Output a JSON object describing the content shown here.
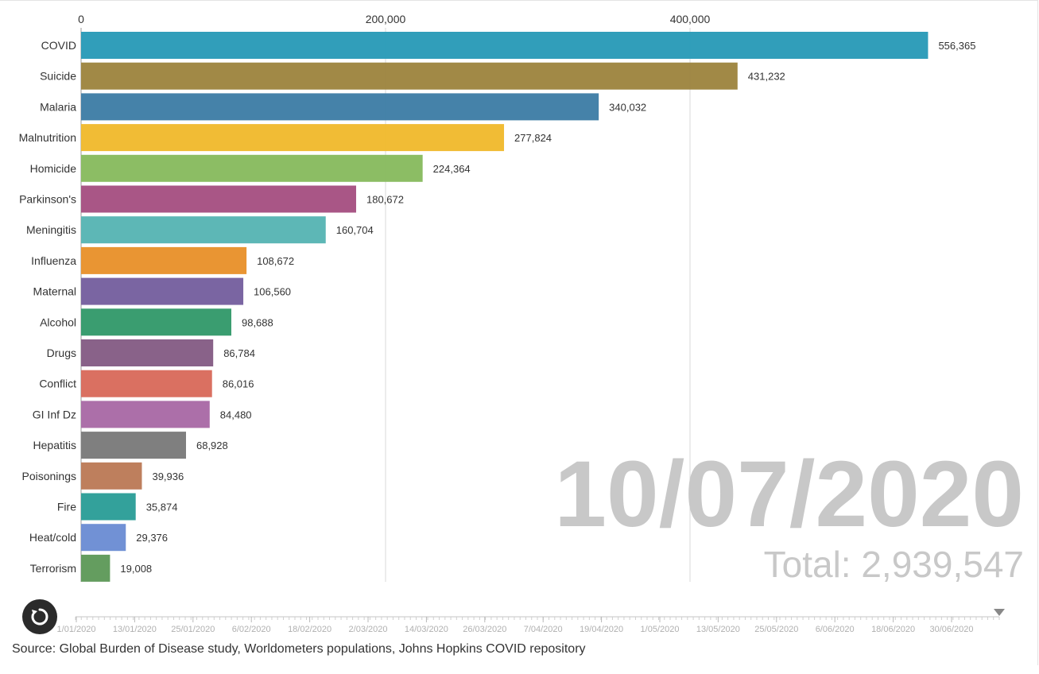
{
  "chart_data": {
    "type": "bar",
    "orientation": "horizontal",
    "categories": [
      "COVID",
      "Suicide",
      "Malaria",
      "Malnutrition",
      "Homicide",
      "Parkinson's",
      "Meningitis",
      "Influenza",
      "Maternal",
      "Alcohol",
      "Drugs",
      "Conflict",
      "GI Inf Dz",
      "Hepatitis",
      "Poisonings",
      "Fire",
      "Heat/cold",
      "Terrorism"
    ],
    "values": [
      556365,
      431232,
      340032,
      277824,
      224364,
      180672,
      160704,
      108672,
      106560,
      98688,
      86784,
      86016,
      84480,
      68928,
      39936,
      35874,
      29376,
      19008
    ],
    "value_labels": [
      "556,365",
      "431,232",
      "340,032",
      "277,824",
      "224,364",
      "180,672",
      "160,704",
      "108,672",
      "106,560",
      "98,688",
      "86,784",
      "86,016",
      "84,480",
      "68,928",
      "39,936",
      "35,874",
      "29,376",
      "19,008"
    ],
    "colors": [
      "#2a9bb8",
      "#9e8540",
      "#3f7ea6",
      "#f1ba2e",
      "#88bb5f",
      "#a65182",
      "#58b5b4",
      "#e8922c",
      "#76609f",
      "#349a6b",
      "#855d85",
      "#d96b5c",
      "#a96aa6",
      "#7b7b7b",
      "#bc7b58",
      "#2c9e98",
      "#6c8dd4",
      "#5f9a5a"
    ],
    "xticks": [
      0,
      200000,
      400000
    ],
    "xtick_labels": [
      "0",
      "200,000",
      "400,000"
    ],
    "xlim": [
      0,
      580000
    ],
    "grid": true,
    "date": "10/07/2020",
    "total": "Total: 2,939,547"
  },
  "timeline": {
    "labels": [
      "1/01/2020",
      "13/01/2020",
      "25/01/2020",
      "6/02/2020",
      "18/02/2020",
      "2/03/2020",
      "14/03/2020",
      "26/03/2020",
      "7/04/2020",
      "19/04/2020",
      "1/05/2020",
      "13/05/2020",
      "25/05/2020",
      "6/06/2020",
      "18/06/2020",
      "30/06/2020"
    ],
    "position": 1.0
  },
  "controls": {
    "replay_icon": "replay-icon"
  },
  "source": "Source: Global Burden of Disease study, Worldometers populations, Johns Hopkins COVID repository"
}
